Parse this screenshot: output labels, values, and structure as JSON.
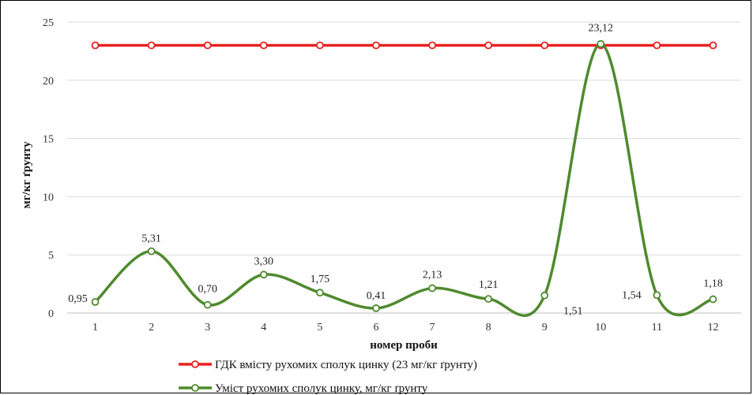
{
  "chart_data": {
    "type": "line",
    "x": [
      1,
      2,
      3,
      4,
      5,
      6,
      7,
      8,
      9,
      10,
      11,
      12
    ],
    "xlabel": "номер проби",
    "ylabel": "мг/кг ґрунту",
    "ylim": [
      0,
      25
    ],
    "yticks": [
      0,
      5,
      10,
      15,
      20,
      25
    ],
    "grid": true,
    "legend_position": "bottom",
    "series": [
      {
        "name": "ГДК вмісту рухомих сполук цинку (23 мг/кг ґрунту)",
        "color": "#e8211f",
        "smooth": false,
        "values": [
          23,
          23,
          23,
          23,
          23,
          23,
          23,
          23,
          23,
          23,
          23,
          23
        ],
        "labels": []
      },
      {
        "name": "Уміст рухомих сполук цинку, мг/кг ґрунту",
        "color": "#4f8a2e",
        "smooth": true,
        "values": [
          0.95,
          5.31,
          0.7,
          3.3,
          1.75,
          0.41,
          2.13,
          1.21,
          1.51,
          23.12,
          1.54,
          1.18
        ],
        "labels": [
          "0,95",
          "5,31",
          "0,70",
          "3,30",
          "1,75",
          "0,41",
          "2,13",
          "1,21",
          "1,51",
          "23,12",
          "1,54",
          "1,18"
        ]
      }
    ]
  }
}
